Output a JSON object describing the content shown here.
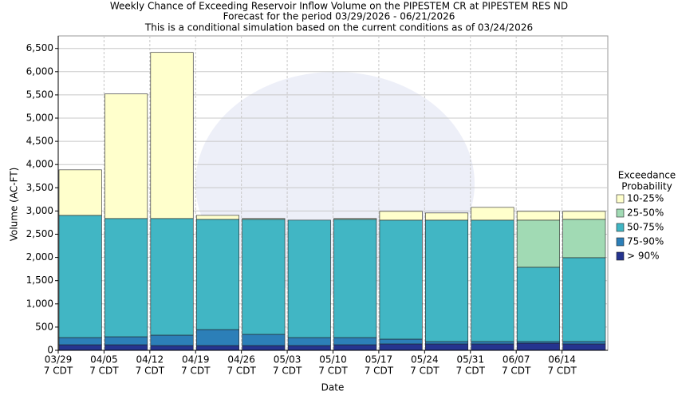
{
  "chart_data": {
    "type": "stacked_bar",
    "title": [
      "Weekly Chance of Exceeding Reservoir Inflow Volume on the PIPESTEM CR at PIPESTEM RES ND",
      "Forecast for the period 03/29/2026 - 06/21/2026",
      "This is a conditional simulation based on the current conditions as of 03/24/2026"
    ],
    "x_label": "Date",
    "y_label": "Volume (AC-FT)",
    "legend_title": [
      "Exceedance",
      "Probability"
    ],
    "categories": [
      "03/29",
      "04/05",
      "04/12",
      "04/19",
      "04/26",
      "05/03",
      "05/10",
      "05/17",
      "05/24",
      "05/31",
      "06/07",
      "06/14"
    ],
    "category_sublabels": [
      "7 CDT",
      "7 CDT",
      "7 CDT",
      "7 CDT",
      "7 CDT",
      "7 CDT",
      "7 CDT",
      "7 CDT",
      "7 CDT",
      "7 CDT",
      "7 CDT",
      "7 CDT"
    ],
    "series": [
      {
        "name": "> 90%",
        "color": "#25348f",
        "values": [
          120,
          120,
          103,
          103,
          103,
          103,
          120,
          138,
          138,
          138,
          155,
          138
        ]
      },
      {
        "name": "75-90%",
        "color": "#2c7fb8",
        "values": [
          155,
          172,
          224,
          344,
          241,
          172,
          155,
          103,
          51,
          51,
          34,
          51
        ]
      },
      {
        "name": "50-75%",
        "color": "#41b6c4",
        "values": [
          2631,
          2546,
          2511,
          2373,
          2476,
          2528,
          2545,
          2562,
          2614,
          2614,
          1600,
          1806
        ]
      },
      {
        "name": "25-50%",
        "color": "#a1dab4",
        "values": [
          0,
          0,
          0,
          0,
          0,
          0,
          0,
          0,
          0,
          0,
          1014,
          825
        ]
      },
      {
        "name": "10-25%",
        "color": "#ffffcc",
        "values": [
          980,
          2682,
          3576,
          86,
          18,
          0,
          18,
          189,
          155,
          275,
          189,
          172
        ]
      }
    ],
    "ylim": [
      0,
      6770
    ],
    "yticks": [
      0,
      500,
      {
        "value": 1000,
        "label": "1,000"
      },
      {
        "value": 1500,
        "label": "1,500"
      },
      {
        "value": 2000,
        "label": "2,000"
      },
      {
        "value": 2500,
        "label": "2,500"
      },
      {
        "value": 3000,
        "label": "3,000"
      },
      {
        "value": 3500,
        "label": "3,500"
      },
      {
        "value": 4000,
        "label": "4,000"
      },
      {
        "value": 4500,
        "label": "4,500"
      },
      {
        "value": 5000,
        "label": "5,000"
      },
      {
        "value": 5500,
        "label": "5,500"
      },
      {
        "value": 6000,
        "label": "6,000"
      },
      {
        "value": 6500,
        "label": "6,500"
      }
    ],
    "grid": true
  }
}
